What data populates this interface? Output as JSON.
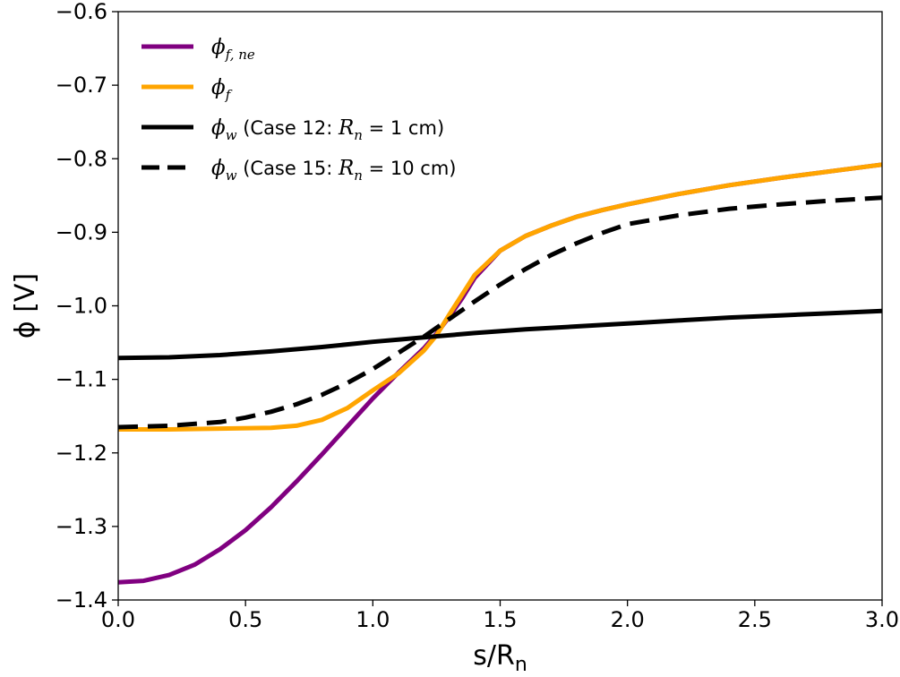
{
  "chart_data": {
    "type": "line",
    "title": "",
    "xlabel": "s/R",
    "xlabel_sub": "n",
    "ylabel": "ϕ [V]",
    "xlim": [
      0.0,
      3.0
    ],
    "ylim": [
      -1.4,
      -0.6
    ],
    "xticks": [
      "0.0",
      "0.5",
      "1.0",
      "1.5",
      "2.0",
      "2.5",
      "3.0"
    ],
    "xtick_values": [
      0.0,
      0.5,
      1.0,
      1.5,
      2.0,
      2.5,
      3.0
    ],
    "yticks": [
      "−1.4",
      "−1.3",
      "−1.2",
      "−1.1",
      "−1.0",
      "−0.9",
      "−0.8",
      "−0.7",
      "−0.6"
    ],
    "ytick_values": [
      -1.4,
      -1.3,
      -1.2,
      -1.1,
      -1.0,
      -0.9,
      -0.8,
      -0.7,
      -0.6
    ],
    "grid": false,
    "legend_position": "upper-left",
    "series": [
      {
        "name": "phi_f_ne",
        "legend_sym": "ϕ",
        "legend_sub": "f, ne",
        "legend_rest": "",
        "color": "#800080",
        "dash": "solid",
        "x": [
          0.0,
          0.1,
          0.2,
          0.3,
          0.4,
          0.5,
          0.6,
          0.7,
          0.8,
          0.9,
          1.0,
          1.1,
          1.2,
          1.25,
          1.3,
          1.35,
          1.4,
          1.5,
          1.6,
          1.7,
          1.8,
          1.9,
          2.0,
          2.2,
          2.4,
          2.6,
          2.8,
          3.0
        ],
        "y": [
          -1.376,
          -1.374,
          -1.366,
          -1.352,
          -1.331,
          -1.305,
          -1.274,
          -1.239,
          -1.202,
          -1.164,
          -1.126,
          -1.091,
          -1.058,
          -1.038,
          -1.015,
          -0.99,
          -0.962,
          -0.925,
          -0.905,
          -0.891,
          -0.879,
          -0.87,
          -0.862,
          -0.848,
          -0.836,
          -0.826,
          -0.817,
          -0.808
        ]
      },
      {
        "name": "phi_f",
        "legend_sym": "ϕ",
        "legend_sub": "f",
        "legend_rest": "",
        "color": "#ffa500",
        "dash": "solid",
        "x": [
          0.0,
          0.2,
          0.4,
          0.6,
          0.7,
          0.8,
          0.9,
          1.0,
          1.1,
          1.2,
          1.25,
          1.3,
          1.35,
          1.4,
          1.5,
          1.6,
          1.7,
          1.8,
          1.9,
          2.0,
          2.2,
          2.4,
          2.6,
          2.8,
          3.0
        ],
        "y": [
          -1.168,
          -1.168,
          -1.167,
          -1.166,
          -1.163,
          -1.155,
          -1.139,
          -1.115,
          -1.092,
          -1.061,
          -1.04,
          -1.012,
          -0.985,
          -0.958,
          -0.925,
          -0.905,
          -0.891,
          -0.879,
          -0.87,
          -0.862,
          -0.848,
          -0.836,
          -0.826,
          -0.817,
          -0.808
        ]
      },
      {
        "name": "phi_w_case12",
        "legend_sym": "ϕ",
        "legend_sub": "w",
        "legend_rest": " (Case 12: ",
        "legend_r": "R",
        "legend_rsub": "n",
        "legend_tail": " = 1 cm)",
        "color": "#000000",
        "dash": "solid",
        "x": [
          0.0,
          0.2,
          0.4,
          0.6,
          0.8,
          1.0,
          1.2,
          1.4,
          1.6,
          1.8,
          2.0,
          2.2,
          2.4,
          2.6,
          2.8,
          3.0
        ],
        "y": [
          -1.071,
          -1.07,
          -1.067,
          -1.062,
          -1.056,
          -1.049,
          -1.043,
          -1.037,
          -1.032,
          -1.028,
          -1.024,
          -1.02,
          -1.016,
          -1.013,
          -1.01,
          -1.007
        ]
      },
      {
        "name": "phi_w_case15",
        "legend_sym": "ϕ",
        "legend_sub": "w",
        "legend_rest": " (Case 15: ",
        "legend_r": "R",
        "legend_rsub": "n",
        "legend_tail": " = 10 cm)",
        "color": "#000000",
        "dash": "dashed",
        "x": [
          0.0,
          0.2,
          0.4,
          0.5,
          0.6,
          0.7,
          0.8,
          0.9,
          1.0,
          1.1,
          1.2,
          1.3,
          1.4,
          1.5,
          1.6,
          1.7,
          1.8,
          1.9,
          2.0,
          2.2,
          2.4,
          2.6,
          2.8,
          3.0
        ],
        "y": [
          -1.165,
          -1.163,
          -1.158,
          -1.152,
          -1.144,
          -1.134,
          -1.121,
          -1.105,
          -1.086,
          -1.064,
          -1.042,
          -1.018,
          -0.994,
          -0.971,
          -0.95,
          -0.931,
          -0.915,
          -0.901,
          -0.889,
          -0.877,
          -0.868,
          -0.862,
          -0.857,
          -0.853
        ]
      }
    ]
  }
}
